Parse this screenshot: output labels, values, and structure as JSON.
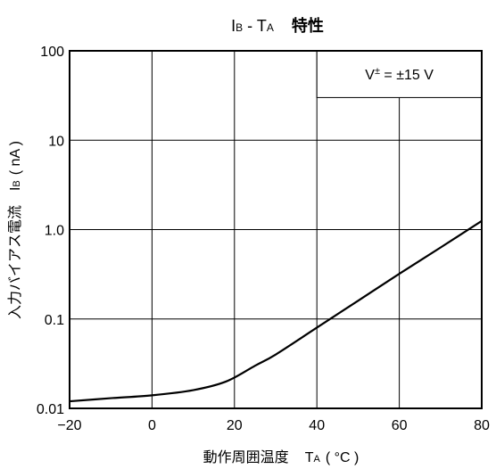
{
  "chart_data": {
    "type": "line",
    "title": {
      "main": "I",
      "main_sub": "B",
      "sep": " - T",
      "sep_sub": "A",
      "jp": "特性"
    },
    "xlabel": {
      "jp": "動作周囲温度",
      "sym": "T",
      "sym_sub": "A",
      "unit": "( °C )"
    },
    "ylabel": {
      "jp": "入力バイアス電流",
      "sym": "I",
      "sym_sub": "B",
      "unit": "( nA )"
    },
    "xlim": [
      -20,
      80
    ],
    "ylim": [
      0.01,
      100
    ],
    "yscale": "log",
    "grid": true,
    "x_ticks": [
      -20,
      0,
      20,
      40,
      60,
      80
    ],
    "x_tick_labels": [
      "−20",
      "0",
      "20",
      "40",
      "60",
      "80"
    ],
    "y_ticks": [
      0.01,
      0.1,
      1,
      10,
      100
    ],
    "y_tick_labels": [
      "0.01",
      "0.1",
      "1.0",
      "10",
      "100"
    ],
    "legend_box": {
      "text": "V",
      "sup": "±",
      "rest": " = ±15 V",
      "placement": "top-right"
    },
    "series": [
      {
        "x": [
          -20,
          -10,
          0,
          10,
          18,
          25,
          30,
          40,
          50,
          60,
          70,
          80
        ],
        "y": [
          0.012,
          0.013,
          0.014,
          0.016,
          0.02,
          0.03,
          0.04,
          0.08,
          0.16,
          0.32,
          0.63,
          1.25
        ]
      }
    ]
  }
}
